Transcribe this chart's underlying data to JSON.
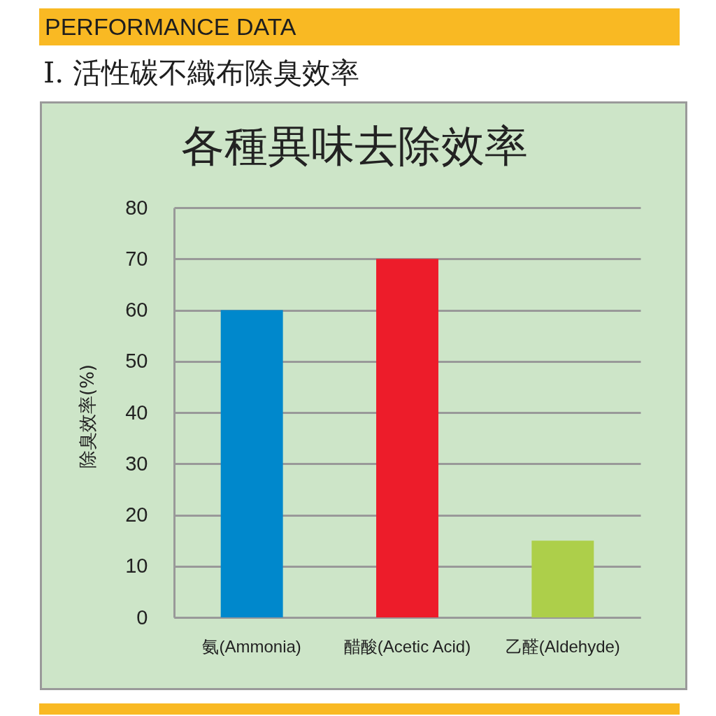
{
  "chart_data": {
    "type": "bar",
    "title": "各種異味去除效率",
    "ylabel": "除臭效率(%)",
    "annotations": [
      "PERFORMANCE DATA",
      "I. 活性碳不織布除臭效率"
    ],
    "categories": [
      "氨(Ammonia)",
      "醋酸(Acetic Acid)",
      "乙醛(Aldehyde)"
    ],
    "values": [
      60,
      70,
      15
    ],
    "colors": [
      "#0088cc",
      "#ed1c2a",
      "#adcf4a"
    ],
    "ylim": [
      0,
      80
    ],
    "yticks": [
      0,
      10,
      20,
      30,
      40,
      50,
      60,
      70,
      80
    ],
    "grid": "y"
  }
}
